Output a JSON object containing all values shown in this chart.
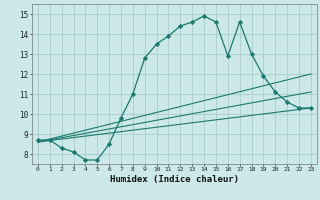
{
  "xlabel": "Humidex (Indice chaleur)",
  "bg_color": "#cce8e8",
  "grid_color": "#aacccc",
  "line_color": "#1a7a6e",
  "xlim": [
    -0.5,
    23.5
  ],
  "ylim": [
    7.5,
    15.5
  ],
  "xticks": [
    0,
    1,
    2,
    3,
    4,
    5,
    6,
    7,
    8,
    9,
    10,
    11,
    12,
    13,
    14,
    15,
    16,
    17,
    18,
    19,
    20,
    21,
    22,
    23
  ],
  "yticks": [
    8,
    9,
    10,
    11,
    12,
    13,
    14,
    15
  ],
  "lines": [
    {
      "x": [
        0,
        1,
        2,
        3,
        4,
        5,
        6,
        7,
        8,
        9,
        10,
        11,
        12,
        13,
        14,
        15,
        16,
        17,
        18,
        19,
        20,
        21,
        22,
        23
      ],
      "y": [
        8.7,
        8.7,
        8.3,
        8.1,
        7.7,
        7.7,
        8.5,
        9.8,
        11.0,
        12.8,
        13.5,
        13.9,
        14.4,
        14.6,
        14.9,
        14.6,
        12.9,
        14.6,
        13.0,
        11.9,
        11.1,
        10.6,
        10.3,
        10.3
      ],
      "marker": "D",
      "markersize": 2.2,
      "linewidth": 0.9,
      "linestyle": "-"
    },
    {
      "x": [
        0,
        23
      ],
      "y": [
        8.6,
        10.3
      ],
      "marker": null,
      "linewidth": 0.8,
      "linestyle": "-"
    },
    {
      "x": [
        0,
        23
      ],
      "y": [
        8.6,
        11.1
      ],
      "marker": null,
      "linewidth": 0.8,
      "linestyle": "-"
    },
    {
      "x": [
        0,
        23
      ],
      "y": [
        8.6,
        12.0
      ],
      "marker": null,
      "linewidth": 0.8,
      "linestyle": "-"
    }
  ]
}
